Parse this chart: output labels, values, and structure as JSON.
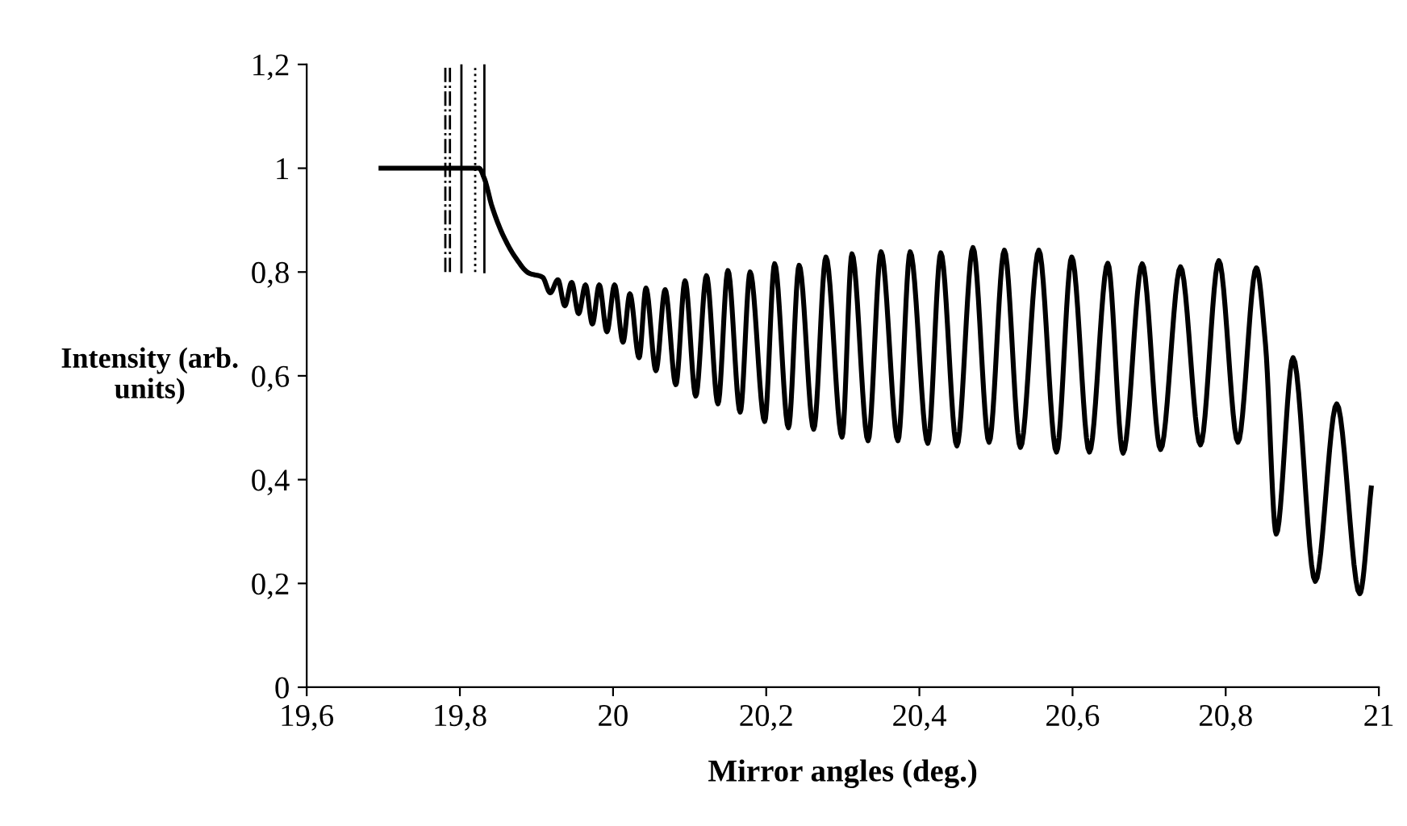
{
  "chart_data": {
    "type": "line",
    "xlabel": "Mirror angles (deg.)",
    "ylabel": "Intensity (arb.\nunits)",
    "xlim": [
      19.6,
      21
    ],
    "ylim": [
      0,
      1.2
    ],
    "xticks": [
      {
        "value": 19.6,
        "label": "19,6"
      },
      {
        "value": 19.8,
        "label": "19,8"
      },
      20,
      {
        "value": 20.2,
        "label": "20,2"
      },
      {
        "value": 20.4,
        "label": "20,4"
      },
      {
        "value": 20.6,
        "label": "20,6"
      },
      {
        "value": 20.8,
        "label": "20,8"
      },
      21
    ],
    "yticks": [
      0,
      {
        "value": 0.2,
        "label": "0,2"
      },
      {
        "value": 0.4,
        "label": "0,4"
      },
      {
        "value": 0.6,
        "label": "0,6"
      },
      {
        "value": 0.8,
        "label": "0,8"
      },
      1,
      {
        "value": 1.2,
        "label": "1,2"
      }
    ],
    "grid": false,
    "legend": false,
    "marker": "none",
    "line_style": "solid",
    "ref_lines": [
      {
        "axis": "x",
        "value": 19.781,
        "label": null,
        "line_style": "dashed",
        "color": "#000000"
      },
      {
        "axis": "x",
        "value": 19.787,
        "label": null,
        "line_style": "dashed",
        "color": "#000000"
      },
      {
        "axis": "x",
        "value": 19.802,
        "label": null,
        "line_style": "solid",
        "color": "#000000"
      },
      {
        "axis": "x",
        "value": 19.82,
        "label": null,
        "line_style": "dotted",
        "color": "#000000"
      },
      {
        "axis": "x",
        "value": 19.832,
        "label": null,
        "line_style": "solid",
        "color": "#000000"
      }
    ],
    "series": [
      {
        "color": "#000000",
        "x": [
          19.697,
          19.75,
          19.8,
          19.825,
          19.832,
          19.842,
          19.856,
          19.873,
          19.89,
          19.908,
          19.918,
          19.928,
          19.937,
          19.946,
          19.955,
          19.964,
          19.973,
          19.982,
          19.992,
          20.002,
          20.013,
          20.022,
          20.034,
          20.043,
          20.056,
          20.068,
          20.082,
          20.094,
          20.108,
          20.122,
          20.137,
          20.15,
          20.166,
          20.179,
          20.198,
          20.211,
          20.229,
          20.243,
          20.262,
          20.278,
          20.299,
          20.312,
          20.333,
          20.35,
          20.372,
          20.388,
          20.411,
          20.428,
          20.449,
          20.47,
          20.491,
          20.511,
          20.532,
          20.556,
          20.579,
          20.599,
          20.622,
          20.646,
          20.666,
          20.691,
          20.715,
          20.741,
          20.767,
          20.791,
          20.816,
          20.84,
          20.852,
          20.866,
          20.888,
          20.917,
          20.945,
          20.975,
          20.99
        ],
        "values": [
          1.0,
          1.0,
          1.0,
          1.0,
          0.98,
          0.926,
          0.872,
          0.827,
          0.798,
          0.79,
          0.76,
          0.785,
          0.735,
          0.78,
          0.72,
          0.775,
          0.7,
          0.775,
          0.685,
          0.775,
          0.665,
          0.758,
          0.635,
          0.769,
          0.61,
          0.766,
          0.583,
          0.783,
          0.561,
          0.793,
          0.546,
          0.803,
          0.53,
          0.8,
          0.512,
          0.816,
          0.5,
          0.813,
          0.497,
          0.829,
          0.482,
          0.835,
          0.475,
          0.839,
          0.475,
          0.839,
          0.47,
          0.837,
          0.465,
          0.847,
          0.472,
          0.842,
          0.462,
          0.842,
          0.453,
          0.829,
          0.453,
          0.817,
          0.451,
          0.816,
          0.458,
          0.81,
          0.467,
          0.822,
          0.472,
          0.808,
          0.66,
          0.295,
          0.635,
          0.204,
          0.546,
          0.18,
          0.384
        ]
      }
    ]
  }
}
